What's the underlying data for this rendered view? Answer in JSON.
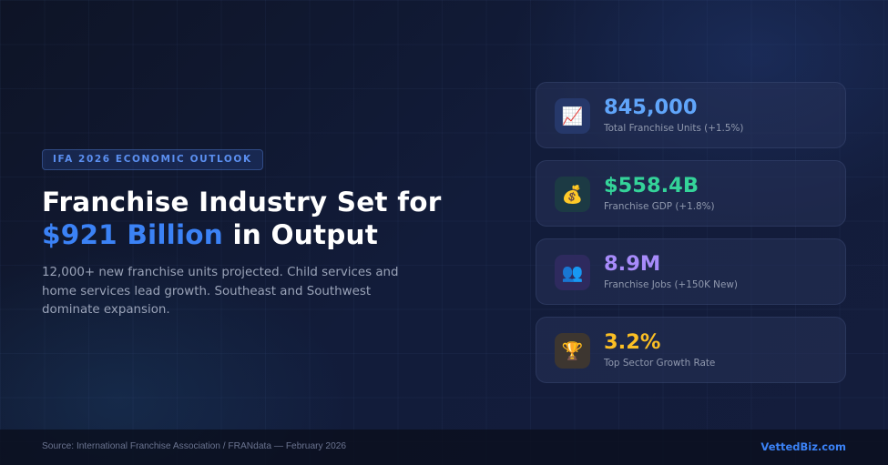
{
  "hero": {
    "badge": "IFA 2026 ECONOMIC OUTLOOK",
    "headline_line1": "Franchise Industry Set for",
    "headline_accent": "$921 Billion",
    "headline_rest": " in Output",
    "description": "12,000+ new franchise units projected. Child services and home services lead growth. Southeast and Southwest dominate expansion."
  },
  "stats": [
    {
      "icon": "chart-increasing-icon",
      "glyph": "📈",
      "value": "845,000",
      "label": "Total Franchise Units (+1.5%)",
      "color": "#60a5fa",
      "icon_bg": "#26386a"
    },
    {
      "icon": "money-bag-icon",
      "glyph": "💰",
      "value": "$558.4B",
      "label": "Franchise GDP (+1.8%)",
      "color": "#34d399",
      "icon_bg": "#1c3a44"
    },
    {
      "icon": "people-icon",
      "glyph": "👥",
      "value": "8.9M",
      "label": "Franchise Jobs (+150K New)",
      "color": "#a78bfa",
      "icon_bg": "#2e2a5e"
    },
    {
      "icon": "trophy-icon",
      "glyph": "🏆",
      "value": "3.2%",
      "label": "Top Sector Growth Rate",
      "color": "#fbbf24",
      "icon_bg": "#3d3630"
    }
  ],
  "footer": {
    "source": "Source: International Franchise Association / FRANdata — February 2026",
    "brand": "VettedBiz.com"
  },
  "colors": {
    "accent": "#3b82f6",
    "background": "#0f1528"
  }
}
